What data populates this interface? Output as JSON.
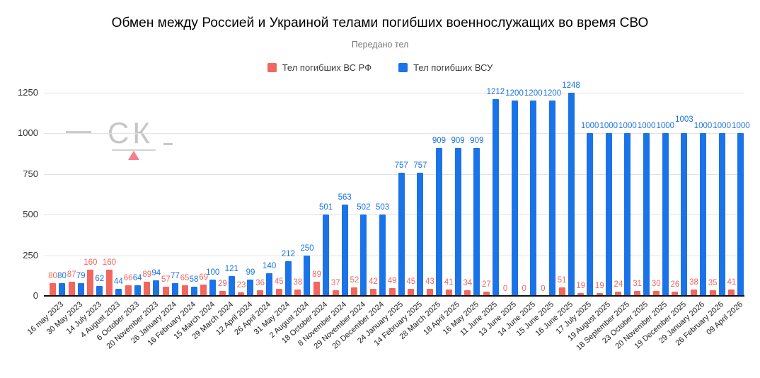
{
  "header": {
    "title": "Обмен между Россией и Украиной телами погибших военнослужащих во время СВО",
    "subtitle": "Передано тел"
  },
  "legend": {
    "items": [
      {
        "label": "Тел погибших ВС  РФ",
        "color": "#f2665e"
      },
      {
        "label": "Тел погибших ВСУ",
        "color": "#1a73e8"
      }
    ]
  },
  "watermark": {
    "text": "СК"
  },
  "chart_data": {
    "type": "bar",
    "title": "Обмен между Россией и Украиной телами погибших военнослужащих во время СВО",
    "subtitle": "Передано тел",
    "categories": [
      "16 may 2023",
      "30 May 2023",
      "14 July 2023",
      "4 August 2023",
      "6 October 2023",
      "20 November 2023",
      "26 January 2024",
      "16 February 2024",
      "15 March 2024",
      "29 March 2024",
      "12 April 2024",
      "26 April 2024",
      "31 May 2024",
      "2 August 2024",
      "18 October 2024",
      "8 November 2024",
      "29 November 2024",
      "20 December 2024",
      "24 January 2025",
      "14 February 2025",
      "28 March 2025",
      "18 April 2025",
      "16 May 2025",
      "11 June 2025",
      "13 June 2025",
      "14 June 2025",
      "15 June 2025",
      "16 June 2025",
      "17 July 2025",
      "19 August 2025",
      "18 September 2025",
      "23 October 2025",
      "20 November 2025",
      "19 December 2025",
      "29 January 2026",
      "26 February 2026",
      "09 April 2026"
    ],
    "series": [
      {
        "name": "Тел погибших ВС  РФ",
        "color": "#f2665e",
        "values": [
          80,
          87,
          160,
          160,
          66,
          89,
          57,
          65,
          69,
          29,
          23,
          36,
          45,
          38,
          89,
          37,
          52,
          42,
          49,
          45,
          43,
          41,
          34,
          27,
          0,
          0,
          0,
          51,
          19,
          19,
          24,
          31,
          30,
          26,
          38,
          35,
          41
        ]
      },
      {
        "name": "Тел погибших ВСУ",
        "color": "#1a73e8",
        "values": [
          80,
          79,
          62,
          44,
          64,
          94,
          77,
          58,
          100,
          121,
          99,
          140,
          212,
          250,
          501,
          563,
          502,
          503,
          757,
          757,
          909,
          909,
          909,
          1212,
          1200,
          1200,
          1200,
          1248,
          1000,
          1000,
          1000,
          1000,
          1000,
          1003,
          1000,
          1000,
          1000
        ]
      }
    ],
    "ylim": [
      0,
      1250
    ],
    "yticks": [
      0,
      250,
      500,
      750,
      1000,
      1250
    ],
    "grid": true,
    "legend_position": "top",
    "bar_labels": true,
    "raised_label": {
      "series": 1,
      "index": 33
    }
  }
}
